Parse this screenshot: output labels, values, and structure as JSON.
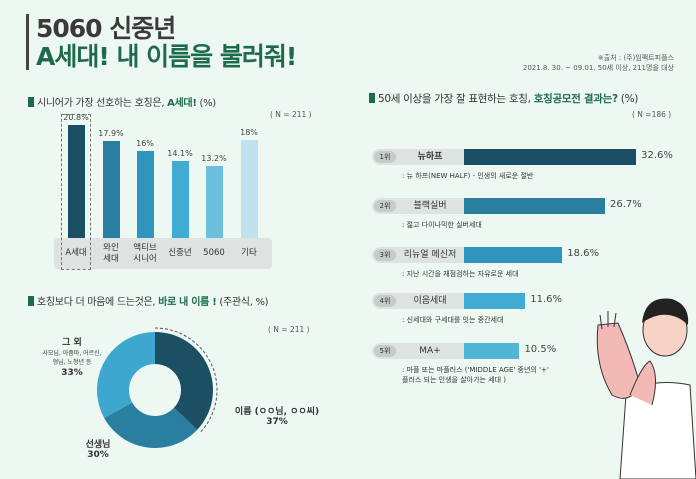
{
  "header": {
    "title_line1": "5060 신중년",
    "title_line2": "A세대! 내 이름을 불러줘!",
    "source_line1": "※출처 : (주)임팩트피플스",
    "source_line2": "2021.8. 30. ~ 09.01. 50세 이상, 211명을 대상"
  },
  "colors": {
    "accent": "#1e6b4c",
    "dark_teal": "#1b4f63",
    "mid_teal": "#2a7fa0",
    "light_blue": "#3ea7cf",
    "pale_blue": "#bfe2ee",
    "background": "#eef8f3"
  },
  "chart_data": [
    {
      "type": "bar",
      "title_plain": "시니어가 가장 선호하는 호칭은, ",
      "title_bold": "A세대!",
      "title_suffix": " (%)",
      "n": "( N = 211 )",
      "categories": [
        "A세대",
        "와인 세대",
        "액티브 시니어",
        "신중년",
        "5060",
        "기타"
      ],
      "category_lines": [
        [
          "A세대"
        ],
        [
          "와인",
          "세대"
        ],
        [
          "액티브",
          "시니어"
        ],
        [
          "신중년"
        ],
        [
          "5060"
        ],
        [
          "기타"
        ]
      ],
      "values": [
        20.8,
        17.9,
        16,
        14.1,
        13.2,
        18
      ],
      "value_labels": [
        "20.8%",
        "17.9%",
        "16%",
        "14.1%",
        "13.2%",
        "18%"
      ],
      "colors": [
        "#1b4f63",
        "#2a7fa0",
        "#2f95bd",
        "#42abd2",
        "#6cc0de",
        "#bfe2ee"
      ],
      "highlight": "A세대"
    },
    {
      "type": "pie",
      "donut": true,
      "title_plain": "호칭보다 더 마음에 드는것은, ",
      "title_bold": "바로 내 이름 !",
      "title_suffix": " (주관식, %)",
      "n": "( N = 211 )",
      "slices": [
        {
          "label": "이름 (ㅇㅇ님, ㅇㅇ씨)",
          "value": 37,
          "value_label": "37%",
          "color": "#1b4f63"
        },
        {
          "label": "선생님",
          "value": 30,
          "value_label": "30%",
          "color": "#2a7fa0"
        },
        {
          "label": "그 외",
          "sublabel1": "사모님, 아줌마, 어르신,",
          "sublabel2": "형님, 노청년 등",
          "value": 33,
          "value_label": "33%",
          "color": "#3ea7cf"
        }
      ]
    },
    {
      "type": "bar",
      "orientation": "horizontal",
      "title_plain": "50세 이상을 가장 잘 표현하는 호칭, ",
      "title_bold": "호칭공모전 결과는?",
      "title_suffix": " (%)",
      "n": "( N =186 )",
      "rows": [
        {
          "rank": "1위",
          "name": "뉴하프",
          "value": 32.6,
          "value_label": "32.6%",
          "desc": ": 뉴 하프(NEW HALF) - 인생의 새로운 절반",
          "color": "#1b4f63"
        },
        {
          "rank": "2위",
          "name": "블랙실버",
          "value": 26.7,
          "value_label": "26.7%",
          "desc": ": 젊고 다이나믹한 실버세대",
          "color": "#2a7fa0"
        },
        {
          "rank": "3위",
          "name": "리뉴얼 메신저",
          "value": 18.6,
          "value_label": "18.6%",
          "desc": ": 지난 시간을 재점검하는 자유로운 세대",
          "color": "#2f95bd"
        },
        {
          "rank": "4위",
          "name": "이음세대",
          "value": 11.6,
          "value_label": "11.6%",
          "desc": ": 신세대와 구세대를 잇는 중간세대",
          "color": "#42abd2"
        },
        {
          "rank": "5위",
          "name": "MA+",
          "value": 10.5,
          "value_label": "10.5%",
          "desc": ": 마플 또는 마플러스 ('MIDDLE AGE' 중년의 '+'",
          "desc2": "플러스 되는 인생을 살아가는 세대 )",
          "color": "#52b5d8"
        }
      ]
    }
  ]
}
